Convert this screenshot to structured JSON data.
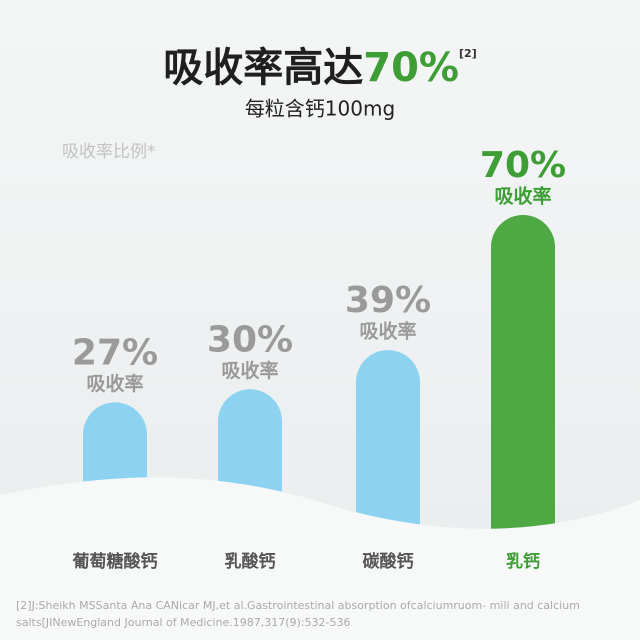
{
  "chart_data": {
    "type": "bar",
    "title": "吸收率高达",
    "title_highlight": "70%",
    "title_ref": "[2]",
    "subtitle": "每粒含钙100mg",
    "y_label": "吸收率比例*",
    "categories": [
      "葡萄糖酸钙",
      "乳酸钙",
      "碳酸钙",
      "乳钙"
    ],
    "values": [
      27,
      30,
      39,
      70
    ],
    "value_labels": [
      "27%",
      "30%",
      "39%",
      "70%"
    ],
    "value_sublabel": "吸收率",
    "colors": [
      "#8dd2f1",
      "#8dd2f1",
      "#8dd2f1",
      "#4ea844"
    ],
    "label_colors": [
      "#9a9a9a",
      "#9a9a9a",
      "#9a9a9a",
      "#3e9e35"
    ],
    "footnote": [
      "[2]J:Sheikh MSSanta Ana CANicar MJ,et al.Gastrointestinal absorption ofcalciumruom- mili and calcium",
      "salts[JINewEngland Journal of Medicine.1987,317(9):532-536"
    ]
  }
}
